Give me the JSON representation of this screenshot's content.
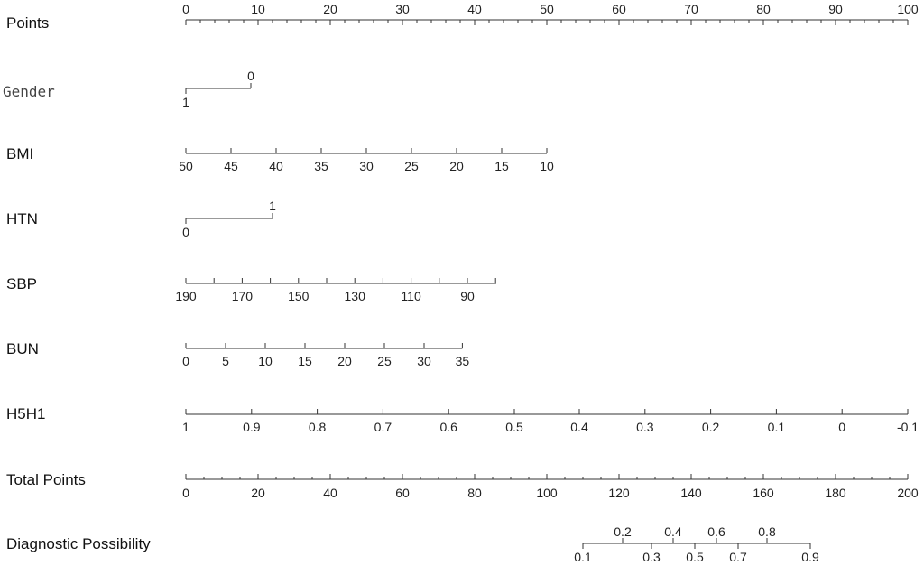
{
  "chart_data": {
    "type": "nomogram",
    "points_scale": {
      "label": "Points",
      "min": 0,
      "max": 100,
      "major_step": 10,
      "minor_step": 2
    },
    "total_points_scale": {
      "label": "Total Points",
      "min": 0,
      "max": 200,
      "major_step": 20,
      "minor_step": 5
    },
    "predictors": [
      {
        "id": "gender",
        "label": "Gender",
        "type": "categorical",
        "levels": [
          {
            "label": "1",
            "points": 0
          },
          {
            "label": "0",
            "points": 9
          }
        ]
      },
      {
        "id": "bmi",
        "label": "BMI",
        "type": "continuous",
        "ticks": [
          {
            "label": "50",
            "points": 0
          },
          {
            "label": "45",
            "points": 6.25
          },
          {
            "label": "40",
            "points": 12.5
          },
          {
            "label": "35",
            "points": 18.75
          },
          {
            "label": "30",
            "points": 25
          },
          {
            "label": "25",
            "points": 31.25
          },
          {
            "label": "20",
            "points": 37.5
          },
          {
            "label": "15",
            "points": 43.75
          },
          {
            "label": "10",
            "points": 50
          }
        ]
      },
      {
        "id": "htn",
        "label": "HTN",
        "type": "categorical",
        "levels": [
          {
            "label": "0",
            "points": 0
          },
          {
            "label": "1",
            "points": 12
          }
        ]
      },
      {
        "id": "sbp",
        "label": "SBP",
        "type": "continuous",
        "line_end_points": 43,
        "ticks": [
          {
            "label": "190",
            "points": 0
          },
          {
            "label": "",
            "points": 3.9
          },
          {
            "label": "170",
            "points": 7.8
          },
          {
            "label": "",
            "points": 11.7
          },
          {
            "label": "150",
            "points": 15.6
          },
          {
            "label": "",
            "points": 19.5
          },
          {
            "label": "130",
            "points": 23.4
          },
          {
            "label": "",
            "points": 27.3
          },
          {
            "label": "110",
            "points": 31.2
          },
          {
            "label": "",
            "points": 35.1
          },
          {
            "label": "90",
            "points": 39
          },
          {
            "label": "",
            "points": 42.9
          }
        ]
      },
      {
        "id": "bun",
        "label": "BUN",
        "type": "continuous",
        "ticks": [
          {
            "label": "0",
            "points": 0
          },
          {
            "label": "5",
            "points": 5.5
          },
          {
            "label": "10",
            "points": 11
          },
          {
            "label": "15",
            "points": 16.5
          },
          {
            "label": "20",
            "points": 22
          },
          {
            "label": "25",
            "points": 27.5
          },
          {
            "label": "30",
            "points": 33
          },
          {
            "label": "35",
            "points": 38.3
          }
        ]
      },
      {
        "id": "h5h1",
        "label": "H5H1",
        "type": "continuous",
        "ticks": [
          {
            "label": "1",
            "points": 0
          },
          {
            "label": "0.9",
            "points": 9.1
          },
          {
            "label": "0.8",
            "points": 18.2
          },
          {
            "label": "0.7",
            "points": 27.3
          },
          {
            "label": "0.6",
            "points": 36.4
          },
          {
            "label": "0.5",
            "points": 45.5
          },
          {
            "label": "0.4",
            "points": 54.5
          },
          {
            "label": "0.3",
            "points": 63.6
          },
          {
            "label": "0.2",
            "points": 72.7
          },
          {
            "label": "0.1",
            "points": 81.8
          },
          {
            "label": "0",
            "points": 90.9
          },
          {
            "label": "-0.1",
            "points": 100
          }
        ]
      }
    ],
    "diagnostic_scale": {
      "label": "Diagnostic Possibility",
      "line_range": [
        110,
        173
      ],
      "ticks": [
        {
          "label": "0.1",
          "total": 110,
          "side": "below"
        },
        {
          "label": "0.2",
          "total": 121,
          "side": "above"
        },
        {
          "label": "0.3",
          "total": 129,
          "side": "below"
        },
        {
          "label": "0.4",
          "total": 135,
          "side": "above"
        },
        {
          "label": "0.5",
          "total": 141,
          "side": "below"
        },
        {
          "label": "0.6",
          "total": 147,
          "side": "above"
        },
        {
          "label": "0.7",
          "total": 153,
          "side": "below"
        },
        {
          "label": "0.8",
          "total": 161,
          "side": "above"
        },
        {
          "label": "0.9",
          "total": 173,
          "side": "below"
        }
      ]
    }
  }
}
